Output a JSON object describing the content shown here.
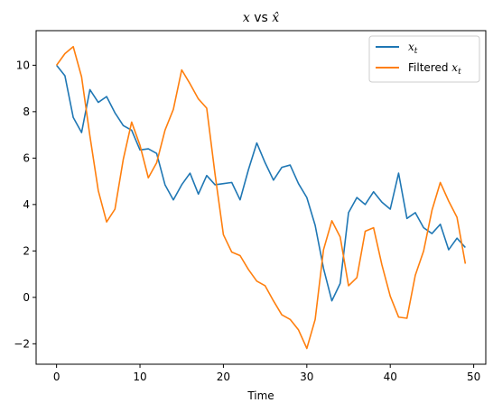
{
  "chart_data": {
    "type": "line",
    "title": "x vs x̂",
    "title_parts": {
      "x1": "x",
      "vs": " vs ",
      "x2": "x̂"
    },
    "xlabel": "Time",
    "ylabel": "",
    "xlim": [
      -2.45,
      51.45
    ],
    "ylim": [
      -2.88,
      11.49
    ],
    "xticks": [
      0,
      10,
      20,
      30,
      40,
      50
    ],
    "yticks": [
      -2,
      0,
      2,
      4,
      6,
      8,
      10
    ],
    "legend": "top-right",
    "grid": false,
    "series": [
      {
        "name": "x_t",
        "color": "#1f77b4",
        "x": [
          0,
          1,
          2,
          3,
          4,
          5,
          6,
          7,
          8,
          9,
          10,
          11,
          12,
          13,
          14,
          15,
          16,
          17,
          18,
          19,
          20,
          21,
          22,
          23,
          24,
          25,
          26,
          27,
          28,
          29,
          30,
          31,
          32,
          33,
          34,
          35,
          36,
          37,
          38,
          39,
          40,
          41,
          42,
          43,
          44,
          45,
          46,
          47,
          48,
          49
        ],
        "values": [
          10.0,
          9.55,
          7.75,
          7.1,
          8.95,
          8.4,
          8.65,
          7.95,
          7.4,
          7.2,
          6.35,
          6.4,
          6.2,
          4.85,
          4.2,
          4.85,
          5.35,
          4.45,
          5.25,
          4.85,
          4.9,
          4.95,
          4.2,
          5.5,
          6.65,
          5.8,
          5.05,
          5.6,
          5.7,
          4.9,
          4.3,
          3.1,
          1.25,
          -0.15,
          0.6,
          3.65,
          4.3,
          4.0,
          4.55,
          4.1,
          3.8,
          5.35,
          3.4,
          3.65,
          3.0,
          2.75,
          3.15,
          2.05,
          2.55,
          2.15
        ]
      },
      {
        "name": "Filtered x_t",
        "color": "#ff7f0e",
        "x": [
          0,
          1,
          2,
          3,
          4,
          5,
          6,
          7,
          8,
          9,
          10,
          11,
          12,
          13,
          14,
          15,
          16,
          17,
          18,
          19,
          20,
          21,
          22,
          23,
          24,
          25,
          26,
          27,
          28,
          29,
          30,
          31,
          32,
          33,
          34,
          35,
          36,
          37,
          38,
          39,
          40,
          41,
          42,
          43,
          44,
          45,
          46,
          47,
          48,
          49
        ],
        "values": [
          10.0,
          10.5,
          10.8,
          9.5,
          6.95,
          4.6,
          3.25,
          3.8,
          5.95,
          7.55,
          6.55,
          5.15,
          5.8,
          7.2,
          8.1,
          9.8,
          9.2,
          8.55,
          8.15,
          5.3,
          2.7,
          1.95,
          1.8,
          1.2,
          0.7,
          0.5,
          -0.15,
          -0.75,
          -0.95,
          -1.4,
          -2.2,
          -0.95,
          2.05,
          3.3,
          2.6,
          0.5,
          0.85,
          2.85,
          3.0,
          1.4,
          0.05,
          -0.85,
          -0.9,
          0.95,
          2.0,
          3.75,
          4.95,
          4.15,
          3.45,
          1.45
        ]
      }
    ]
  },
  "legend": {
    "items": [
      {
        "base": "x",
        "sub": "t",
        "prefix": ""
      },
      {
        "base": "x",
        "sub": "t",
        "prefix": "Filtered "
      }
    ]
  }
}
